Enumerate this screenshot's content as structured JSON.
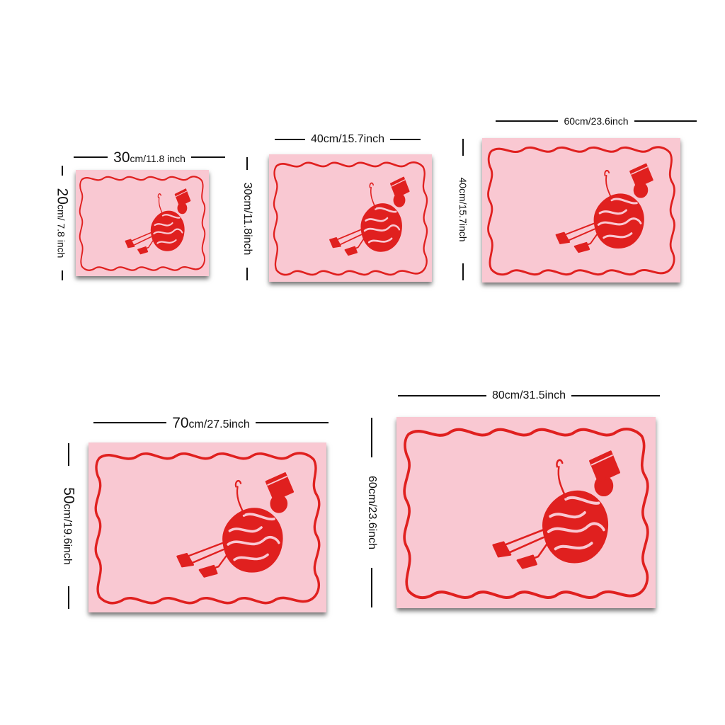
{
  "colors": {
    "paper": "#f9c8d2",
    "ink": "#e0201f",
    "rule": "#111111"
  },
  "illustration": {
    "subject": "woman-reading-book-icon",
    "style": "red line art with wavy frame"
  },
  "variants": [
    {
      "id": "30x20",
      "width_label_num": "30",
      "width_label_unit": "cm/11.8 inch",
      "height_label_num": "20",
      "height_label_unit": "cm/ 7.8 inch"
    },
    {
      "id": "40x30",
      "width_label": "40cm/15.7inch",
      "height_label": "30cm/11.8inch"
    },
    {
      "id": "60x40",
      "width_label": "60cm/23.6inch",
      "height_label": "40cm/15.7inch"
    },
    {
      "id": "70x50",
      "width_label_num": "70",
      "width_label_unit": "cm/27.5inch",
      "height_label_num": "50",
      "height_label_unit": "cm/19.6inch"
    },
    {
      "id": "80x60",
      "width_label": "80cm/31.5inch",
      "height_label": "60cm/23.6inch"
    }
  ]
}
